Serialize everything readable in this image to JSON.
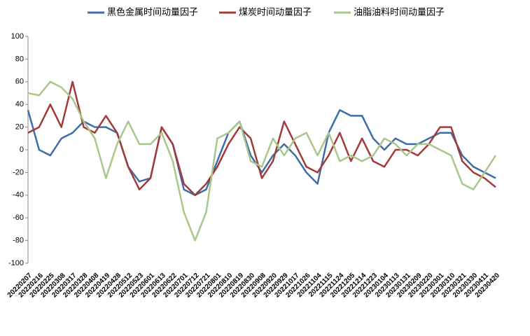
{
  "chart_data": {
    "type": "line",
    "categories": [
      "20220207",
      "20220216",
      "20220225",
      "20220308",
      "20220317",
      "20220328",
      "20220408",
      "20220419",
      "20220428",
      "20220512",
      "20220523",
      "20220601",
      "20220613",
      "20220622",
      "20220701",
      "20220712",
      "20220721",
      "20220801",
      "20220810",
      "20220819",
      "20220830",
      "20220908",
      "20220920",
      "20220929",
      "20221017",
      "20221026",
      "20221104",
      "20221115",
      "20221124",
      "20221205",
      "20221214",
      "20221223",
      "20230104",
      "20230113",
      "20230131",
      "20230209",
      "20230220",
      "20230301",
      "20230310",
      "20230321",
      "20230330",
      "20230411",
      "20230420"
    ],
    "series": [
      {
        "name": "黑色金属时间动量因子",
        "color": "#3f6da8",
        "values": [
          35,
          0,
          -5,
          10,
          15,
          25,
          20,
          20,
          15,
          -15,
          -28,
          -25,
          20,
          5,
          -35,
          -40,
          -35,
          -10,
          15,
          25,
          -5,
          -20,
          -5,
          5,
          -5,
          -20,
          -30,
          15,
          35,
          30,
          30,
          10,
          0,
          10,
          5,
          5,
          10,
          15,
          15,
          -5,
          -15,
          -20,
          -25
        ]
      },
      {
        "name": "煤炭时间动量因子",
        "color": "#a33a3a",
        "values": [
          15,
          20,
          40,
          20,
          60,
          20,
          15,
          30,
          15,
          -15,
          -35,
          -25,
          20,
          5,
          -30,
          -40,
          -30,
          -15,
          5,
          20,
          10,
          -25,
          -10,
          25,
          5,
          -15,
          -20,
          -5,
          15,
          -10,
          10,
          -10,
          -15,
          0,
          0,
          -5,
          5,
          20,
          20,
          -10,
          -20,
          -25,
          -33
        ]
      },
      {
        "name": "油脂油料时间动量因子",
        "color": "#a9c78b",
        "values": [
          50,
          48,
          60,
          55,
          45,
          25,
          10,
          -25,
          5,
          25,
          5,
          5,
          15,
          -10,
          -55,
          -80,
          -55,
          10,
          15,
          25,
          -10,
          -15,
          10,
          -5,
          10,
          15,
          -5,
          15,
          -10,
          -5,
          -10,
          -5,
          10,
          5,
          -5,
          5,
          5,
          0,
          -5,
          -30,
          -35,
          -20,
          -5
        ]
      }
    ],
    "ylim": [
      -100,
      100
    ],
    "yticks": [
      -100,
      -80,
      -60,
      -40,
      -20,
      0,
      20,
      40,
      60,
      80,
      100
    ],
    "legend": "top"
  }
}
